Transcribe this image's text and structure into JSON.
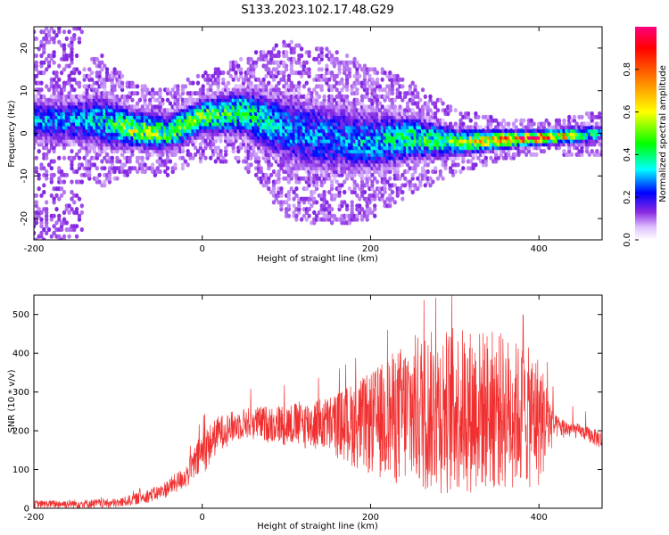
{
  "title": "S133.2023.102.17.48.G29",
  "chart_data": [
    {
      "type": "heatmap",
      "xlabel": "Height of straight line (km)",
      "ylabel": "Frequency (Hz)",
      "xlim": [
        -200,
        475
      ],
      "ylim": [
        -25,
        25
      ],
      "xticks": [
        -200,
        0,
        200,
        400
      ],
      "yticks": [
        -20,
        -10,
        0,
        10,
        20
      ],
      "colorbar": {
        "label": "Normalized spectral amplitude",
        "range": [
          0,
          1
        ],
        "ticks": [
          "0.0",
          "0.2",
          "0.4",
          "0.6",
          "0.8"
        ],
        "tick_values": [
          0.0,
          0.2,
          0.4,
          0.6,
          0.8
        ]
      },
      "ridge": [
        {
          "x": -150,
          "y": 3,
          "halfwidth": 5,
          "amp": 0.3
        },
        {
          "x": -120,
          "y": 3,
          "halfwidth": 6,
          "amp": 0.35
        },
        {
          "x": -80,
          "y": 1,
          "halfwidth": 4,
          "amp": 0.55
        },
        {
          "x": -40,
          "y": 0,
          "halfwidth": 4,
          "amp": 0.5
        },
        {
          "x": 0,
          "y": 4,
          "halfwidth": 4,
          "amp": 0.5
        },
        {
          "x": 50,
          "y": 5,
          "halfwidth": 5,
          "amp": 0.45
        },
        {
          "x": 100,
          "y": 1,
          "halfwidth": 8,
          "amp": 0.3
        },
        {
          "x": 150,
          "y": -1,
          "halfwidth": 8,
          "amp": 0.28
        },
        {
          "x": 200,
          "y": -2,
          "halfwidth": 7,
          "amp": 0.32
        },
        {
          "x": 250,
          "y": -1,
          "halfwidth": 5,
          "amp": 0.42
        },
        {
          "x": 300,
          "y": -2,
          "halfwidth": 3,
          "amp": 0.5
        },
        {
          "x": 350,
          "y": -1.5,
          "halfwidth": 2,
          "amp": 0.75
        },
        {
          "x": 400,
          "y": -1,
          "halfwidth": 1.5,
          "amp": 0.95
        },
        {
          "x": 475,
          "y": 0,
          "halfwidth": 2,
          "amp": 0.3
        }
      ]
    },
    {
      "type": "line",
      "xlabel": "Height of straight line (km)",
      "ylabel": "SNR (10 * v/v)",
      "xlim": [
        -200,
        475
      ],
      "ylim": [
        0,
        550
      ],
      "xticks": [
        -200,
        0,
        200,
        400
      ],
      "yticks": [
        0,
        100,
        200,
        300,
        400,
        500
      ],
      "color": "#f03030",
      "envelope": [
        {
          "x": -200,
          "lo": 0,
          "hi": 20
        },
        {
          "x": -100,
          "lo": 0,
          "hi": 25
        },
        {
          "x": -50,
          "lo": 20,
          "hi": 60
        },
        {
          "x": -20,
          "lo": 50,
          "hi": 110
        },
        {
          "x": 0,
          "lo": 80,
          "hi": 200
        },
        {
          "x": 20,
          "lo": 150,
          "hi": 240
        },
        {
          "x": 50,
          "lo": 180,
          "hi": 260
        },
        {
          "x": 100,
          "lo": 160,
          "hi": 270
        },
        {
          "x": 150,
          "lo": 140,
          "hi": 290
        },
        {
          "x": 200,
          "lo": 80,
          "hi": 350
        },
        {
          "x": 250,
          "lo": 40,
          "hi": 450
        },
        {
          "x": 300,
          "lo": 30,
          "hi": 470
        },
        {
          "x": 350,
          "lo": 40,
          "hi": 460
        },
        {
          "x": 400,
          "lo": 50,
          "hi": 400
        },
        {
          "x": 420,
          "lo": 180,
          "hi": 240
        },
        {
          "x": 450,
          "lo": 180,
          "hi": 215
        },
        {
          "x": 475,
          "lo": 150,
          "hi": 200
        }
      ]
    }
  ]
}
